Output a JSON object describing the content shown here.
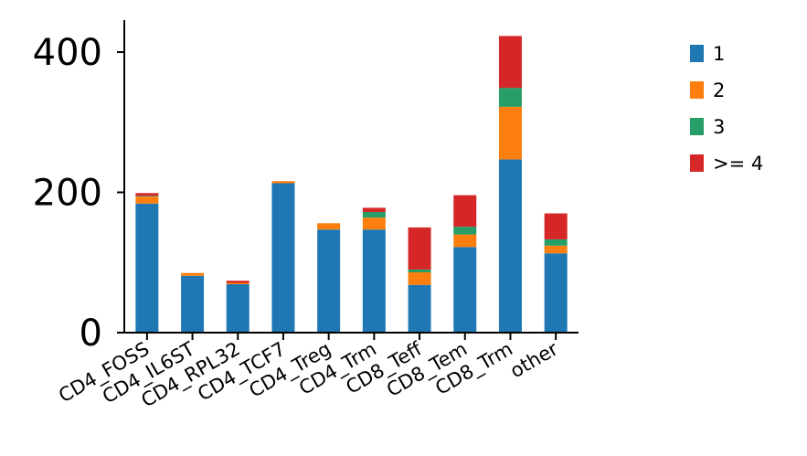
{
  "chart_data": {
    "type": "bar",
    "stacked": true,
    "title": "",
    "xlabel": "",
    "ylabel": "",
    "ylim": [
      0,
      440
    ],
    "yticks": [
      0,
      200,
      400
    ],
    "grid": false,
    "legend_placement": "right",
    "categories": [
      "CD4_FOSS",
      "CD4_IL6ST",
      "CD4_RPL32",
      "CD4_TCF7",
      "CD4_Treg",
      "CD4_Trm",
      "CD8_Teff",
      "CD8_Tem",
      "CD8_Trm",
      "other"
    ],
    "series": [
      {
        "name": "1",
        "color": "#1f77b4",
        "values": [
          184,
          81,
          69,
          213,
          147,
          147,
          68,
          122,
          247,
          113
        ]
      },
      {
        "name": "2",
        "color": "#ff7f0e",
        "values": [
          10,
          4,
          2,
          3,
          9,
          17,
          18,
          18,
          75,
          11
        ]
      },
      {
        "name": "3",
        "color": "#279e68",
        "values": [
          1,
          0,
          0,
          0,
          0,
          8,
          4,
          11,
          27,
          9
        ]
      },
      {
        "name": ">= 4",
        "color": "#d62728",
        "values": [
          4,
          0,
          3,
          0,
          0,
          6,
          60,
          45,
          74,
          37
        ]
      }
    ]
  }
}
